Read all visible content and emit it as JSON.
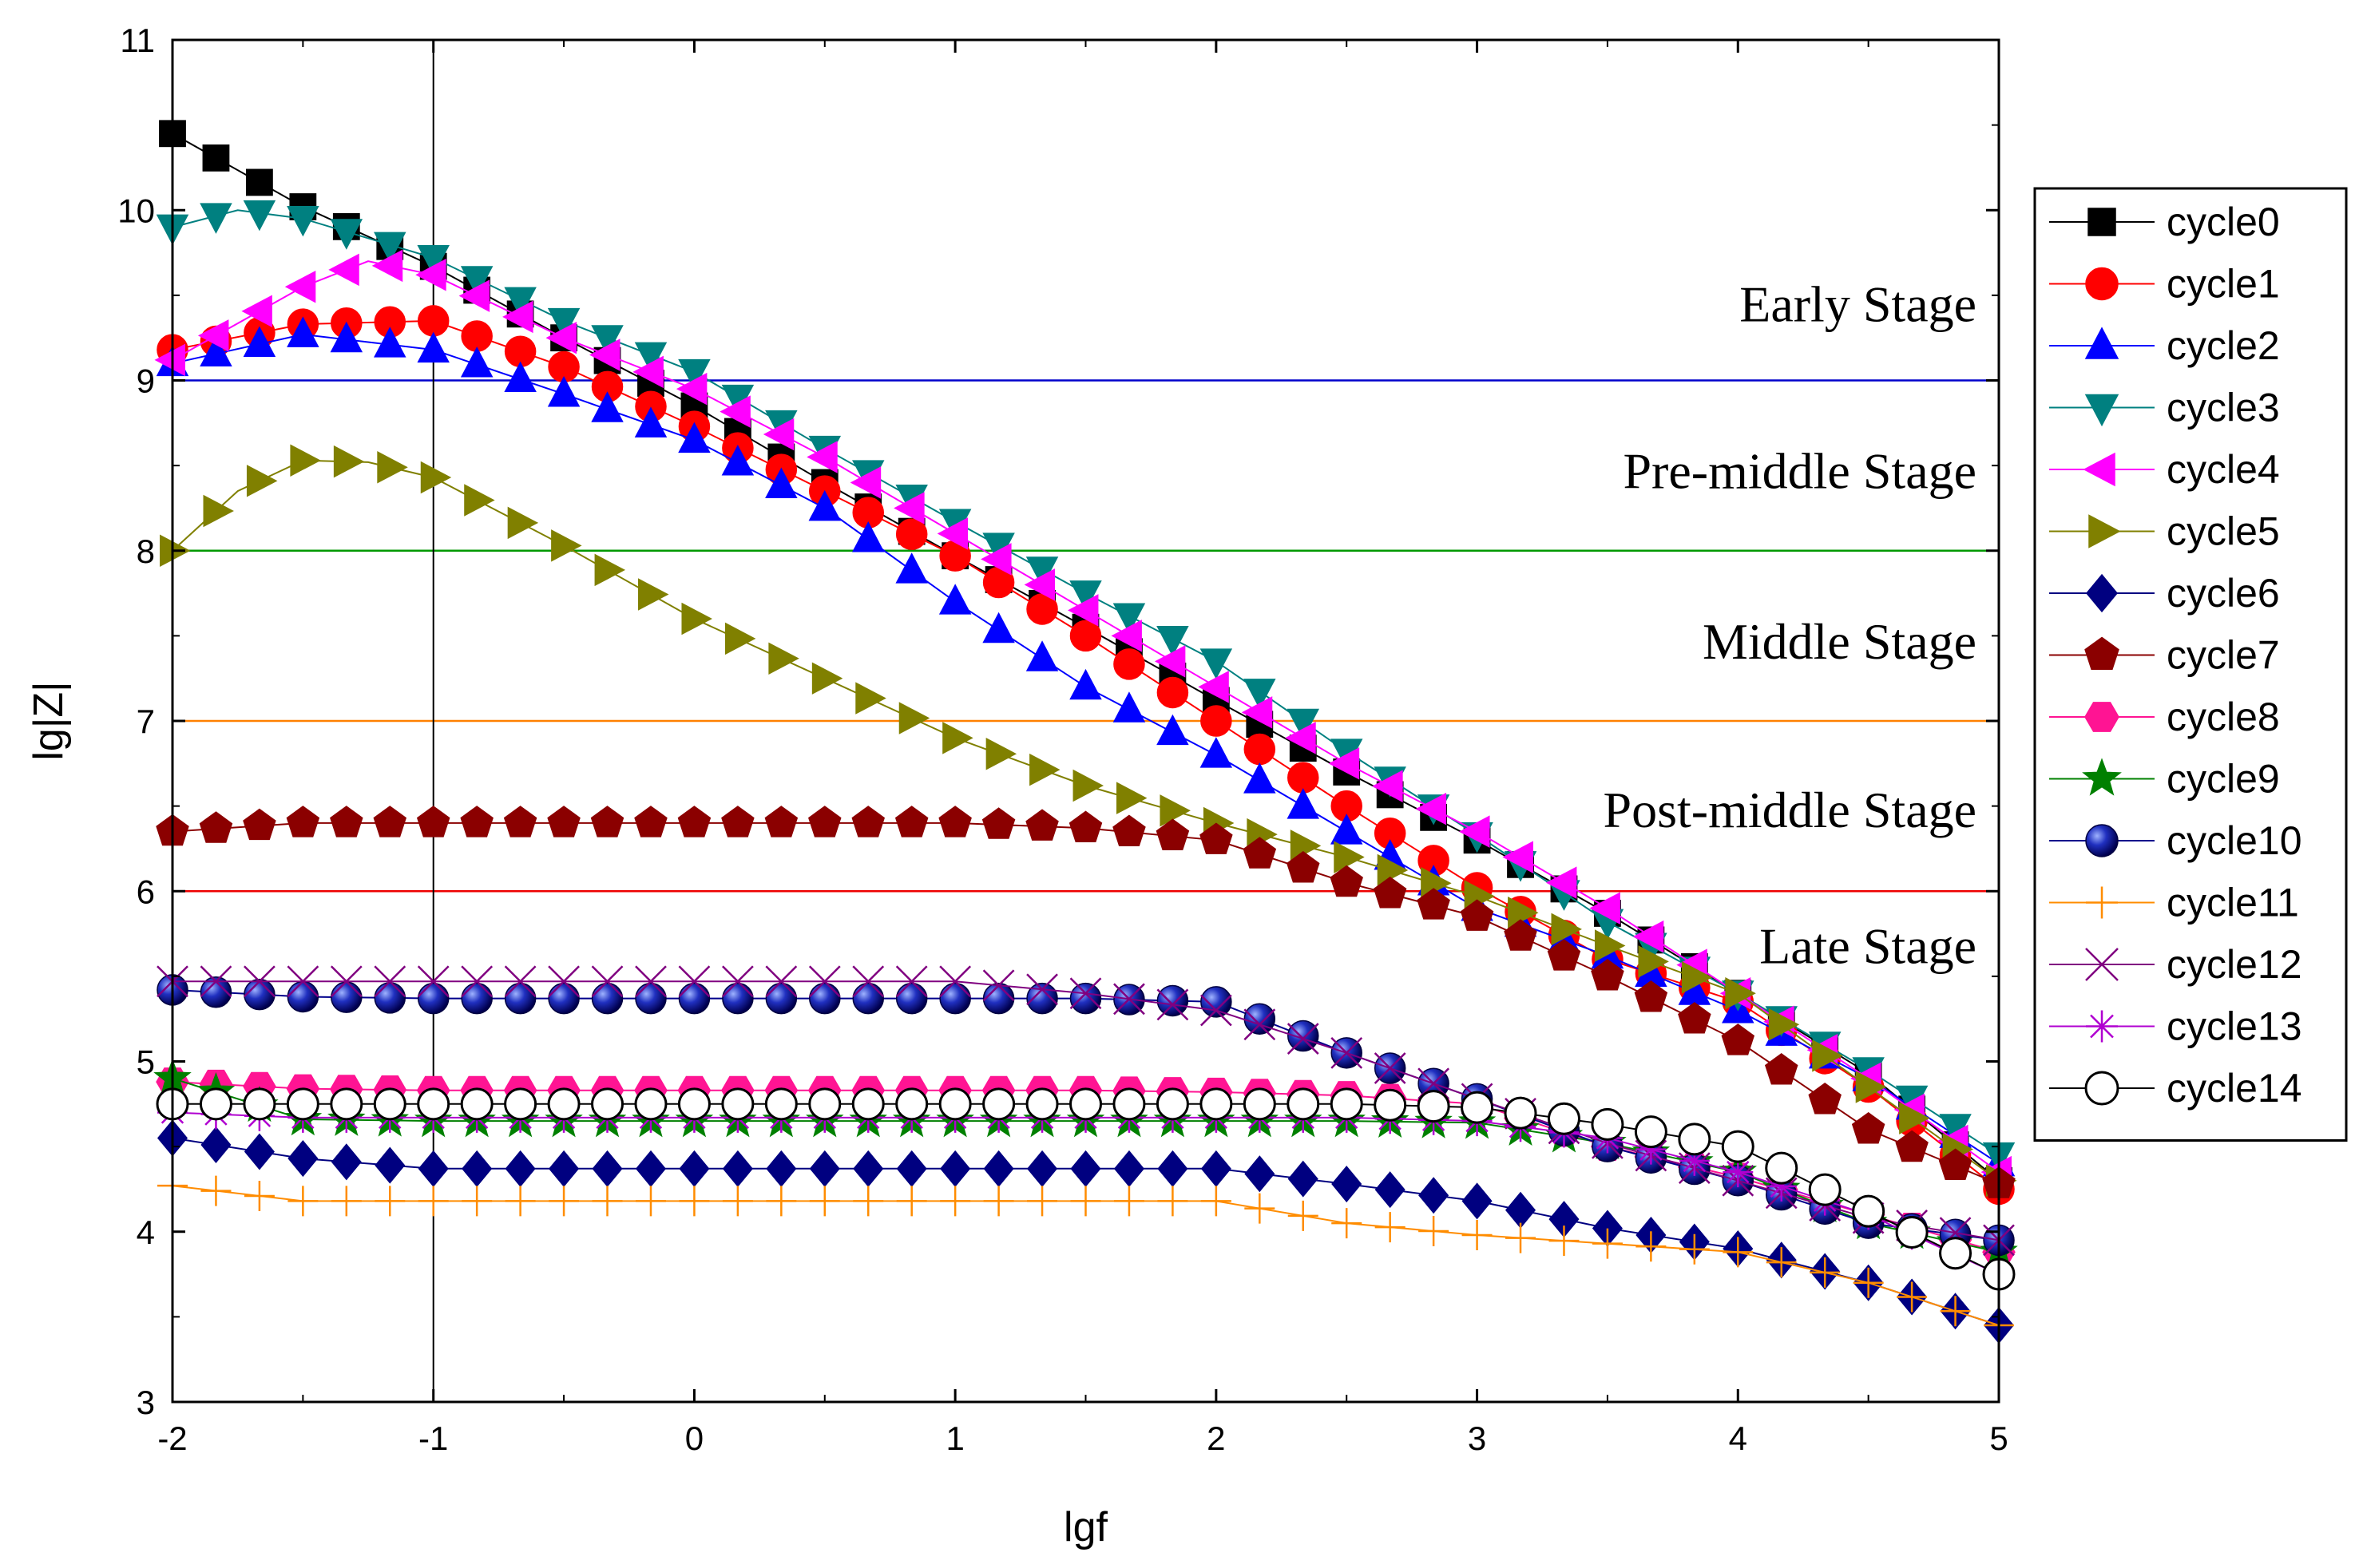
{
  "chart_data": {
    "type": "line",
    "title": "",
    "xlabel": "lgf",
    "ylabel": "lg|Z|",
    "xlim": [
      -2,
      5
    ],
    "ylim": [
      3,
      11
    ],
    "xticks": [
      -2,
      -1,
      0,
      1,
      2,
      3,
      4,
      5
    ],
    "yticks": [
      3,
      4,
      5,
      6,
      7,
      8,
      9,
      10,
      11
    ],
    "x_tick_labels": [
      "-2",
      "-1",
      "0",
      "1",
      "2",
      "3",
      "4",
      "5"
    ],
    "y_tick_labels": [
      "3",
      "4",
      "5",
      "6",
      "7",
      "8",
      "9",
      "10",
      "11"
    ],
    "legend_position": "right",
    "reference_vline": {
      "x": -1,
      "color": "#000000"
    },
    "threshold_lines": [
      {
        "y": 9,
        "color": "#0000cc"
      },
      {
        "y": 8,
        "color": "#009900"
      },
      {
        "y": 7,
        "color": "#ff8000"
      },
      {
        "y": 6,
        "color": "#ee0000"
      }
    ],
    "stage_labels": [
      {
        "text": "Early Stage",
        "y": 9.45
      },
      {
        "text": "Pre-middle Stage",
        "y": 8.47
      },
      {
        "text": "Middle Stage",
        "y": 7.47
      },
      {
        "text": "Post-middle Stage",
        "y": 6.48
      },
      {
        "text": "Late Stage",
        "y": 5.68
      }
    ],
    "series": [
      {
        "name": "cycle0",
        "color": "#000000",
        "line_color": "#000000",
        "marker": "square",
        "points": [
          [
            -2,
            10.45
          ],
          [
            -1.5,
            10.02
          ],
          [
            -1,
            9.67
          ],
          [
            -0.5,
            9.25
          ],
          [
            0,
            8.85
          ],
          [
            0.5,
            8.4
          ],
          [
            1,
            7.97
          ],
          [
            1.5,
            7.55
          ],
          [
            2,
            7.12
          ],
          [
            2.5,
            6.7
          ],
          [
            3,
            6.3
          ],
          [
            3.5,
            5.87
          ],
          [
            4,
            5.4
          ],
          [
            4.5,
            4.93
          ],
          [
            5,
            4.3
          ]
        ]
      },
      {
        "name": "cycle1",
        "color": "#ff0000",
        "line_color": "#ff0000",
        "marker": "circle",
        "points": [
          [
            -2,
            9.18
          ],
          [
            -1.5,
            9.33
          ],
          [
            -1,
            9.35
          ],
          [
            -0.5,
            9.08
          ],
          [
            0,
            8.73
          ],
          [
            0.5,
            8.35
          ],
          [
            1,
            7.97
          ],
          [
            1.5,
            7.5
          ],
          [
            2,
            7.0
          ],
          [
            2.5,
            6.5
          ],
          [
            3,
            6.02
          ],
          [
            3.5,
            5.6
          ],
          [
            4,
            5.35
          ],
          [
            4.5,
            4.85
          ],
          [
            5,
            4.25
          ]
        ]
      },
      {
        "name": "cycle2",
        "color": "#0000ff",
        "line_color": "#0000ff",
        "marker": "triangle-up",
        "points": [
          [
            -2,
            9.1
          ],
          [
            -1.5,
            9.27
          ],
          [
            -1,
            9.18
          ],
          [
            -0.5,
            8.92
          ],
          [
            0,
            8.65
          ],
          [
            0.5,
            8.25
          ],
          [
            1,
            7.7
          ],
          [
            1.5,
            7.2
          ],
          [
            2,
            6.8
          ],
          [
            2.5,
            6.35
          ],
          [
            3,
            5.9
          ],
          [
            3.5,
            5.62
          ],
          [
            4,
            5.3
          ],
          [
            4.5,
            4.9
          ],
          [
            5,
            4.4
          ]
        ]
      },
      {
        "name": "cycle3",
        "color": "#008080",
        "line_color": "#008080",
        "marker": "triangle-down",
        "points": [
          [
            -2,
            9.9
          ],
          [
            -1.75,
            10.0
          ],
          [
            -1.5,
            9.95
          ],
          [
            -1,
            9.72
          ],
          [
            -0.5,
            9.35
          ],
          [
            0,
            9.05
          ],
          [
            0.5,
            8.6
          ],
          [
            1,
            8.17
          ],
          [
            1.5,
            7.75
          ],
          [
            2,
            7.35
          ],
          [
            2.5,
            6.82
          ],
          [
            3,
            6.33
          ],
          [
            3.5,
            5.82
          ],
          [
            4,
            5.4
          ],
          [
            4.5,
            4.95
          ],
          [
            5,
            4.45
          ]
        ]
      },
      {
        "name": "cycle4",
        "color": "#ff00ff",
        "line_color": "#ff00ff",
        "marker": "triangle-left",
        "points": [
          [
            -2,
            9.12
          ],
          [
            -1.5,
            9.55
          ],
          [
            -1.25,
            9.7
          ],
          [
            -1,
            9.62
          ],
          [
            -0.5,
            9.25
          ],
          [
            0,
            8.95
          ],
          [
            0.5,
            8.55
          ],
          [
            1,
            8.1
          ],
          [
            1.5,
            7.65
          ],
          [
            2,
            7.2
          ],
          [
            2.5,
            6.75
          ],
          [
            3,
            6.35
          ],
          [
            3.5,
            5.9
          ],
          [
            4,
            5.4
          ],
          [
            4.5,
            4.9
          ],
          [
            5,
            4.35
          ]
        ]
      },
      {
        "name": "cycle5",
        "color": "#808000",
        "line_color": "#808000",
        "marker": "triangle-right",
        "points": [
          [
            -2,
            8.0
          ],
          [
            -1.75,
            8.35
          ],
          [
            -1.5,
            8.53
          ],
          [
            -1.25,
            8.52
          ],
          [
            -1,
            8.43
          ],
          [
            -0.5,
            8.03
          ],
          [
            0,
            7.6
          ],
          [
            0.5,
            7.25
          ],
          [
            1,
            6.9
          ],
          [
            1.5,
            6.62
          ],
          [
            2,
            6.4
          ],
          [
            2.5,
            6.2
          ],
          [
            3,
            5.97
          ],
          [
            3.5,
            5.68
          ],
          [
            4,
            5.4
          ],
          [
            4.5,
            4.85
          ],
          [
            5,
            4.3
          ]
        ]
      },
      {
        "name": "cycle6",
        "color": "#000080",
        "line_color": "#000080",
        "marker": "diamond",
        "points": [
          [
            -2,
            4.55
          ],
          [
            -1.5,
            4.43
          ],
          [
            -1,
            4.37
          ],
          [
            -0.5,
            4.37
          ],
          [
            0,
            4.37
          ],
          [
            0.5,
            4.37
          ],
          [
            1,
            4.37
          ],
          [
            1.5,
            4.37
          ],
          [
            2,
            4.37
          ],
          [
            2.5,
            4.28
          ],
          [
            3,
            4.18
          ],
          [
            3.5,
            4.02
          ],
          [
            4,
            3.9
          ],
          [
            4.5,
            3.7
          ],
          [
            5,
            3.45
          ]
        ]
      },
      {
        "name": "cycle7",
        "color": "#8b0000",
        "line_color": "#8b0000",
        "marker": "pentagon",
        "points": [
          [
            -2,
            6.35
          ],
          [
            -1.5,
            6.4
          ],
          [
            -1,
            6.4
          ],
          [
            -0.5,
            6.4
          ],
          [
            0,
            6.4
          ],
          [
            0.5,
            6.4
          ],
          [
            1,
            6.4
          ],
          [
            1.5,
            6.37
          ],
          [
            2,
            6.3
          ],
          [
            2.5,
            6.05
          ],
          [
            3,
            5.85
          ],
          [
            3.5,
            5.5
          ],
          [
            4,
            5.12
          ],
          [
            4.5,
            4.6
          ],
          [
            5,
            4.28
          ]
        ]
      },
      {
        "name": "cycle8",
        "color": "#ff1493",
        "line_color": "#ff1493",
        "marker": "hexagon",
        "points": [
          [
            -2,
            4.88
          ],
          [
            -1.5,
            4.84
          ],
          [
            -1,
            4.83
          ],
          [
            -0.5,
            4.83
          ],
          [
            0,
            4.83
          ],
          [
            0.5,
            4.83
          ],
          [
            1,
            4.83
          ],
          [
            1.5,
            4.83
          ],
          [
            2,
            4.82
          ],
          [
            2.5,
            4.8
          ],
          [
            3,
            4.75
          ],
          [
            3.5,
            4.5
          ],
          [
            4,
            4.32
          ],
          [
            4.5,
            4.1
          ],
          [
            5,
            3.88
          ]
        ]
      },
      {
        "name": "cycle9",
        "color": "#008000",
        "line_color": "#008000",
        "marker": "star",
        "points": [
          [
            -2,
            4.9
          ],
          [
            -1.5,
            4.66
          ],
          [
            -1,
            4.65
          ],
          [
            -0.5,
            4.65
          ],
          [
            0,
            4.65
          ],
          [
            0.5,
            4.65
          ],
          [
            1,
            4.65
          ],
          [
            1.5,
            4.65
          ],
          [
            2,
            4.65
          ],
          [
            2.5,
            4.65
          ],
          [
            3,
            4.64
          ],
          [
            3.5,
            4.52
          ],
          [
            4,
            4.35
          ],
          [
            4.5,
            4.05
          ],
          [
            5,
            3.88
          ]
        ]
      },
      {
        "name": "cycle10",
        "color": "#00008b",
        "line_color": "#00008b",
        "marker": "sphere",
        "points": [
          [
            -2,
            5.42
          ],
          [
            -1.5,
            5.38
          ],
          [
            -1,
            5.37
          ],
          [
            -0.5,
            5.37
          ],
          [
            0,
            5.37
          ],
          [
            0.5,
            5.37
          ],
          [
            1,
            5.37
          ],
          [
            1.5,
            5.37
          ],
          [
            2,
            5.35
          ],
          [
            2.5,
            5.05
          ],
          [
            3,
            4.78
          ],
          [
            3.5,
            4.5
          ],
          [
            4,
            4.3
          ],
          [
            4.5,
            4.05
          ],
          [
            5,
            3.95
          ]
        ]
      },
      {
        "name": "cycle11",
        "color": "#ff8c00",
        "line_color": "#ff8c00",
        "marker": "plus",
        "points": [
          [
            -2,
            4.27
          ],
          [
            -1.5,
            4.18
          ],
          [
            -1,
            4.18
          ],
          [
            -0.5,
            4.18
          ],
          [
            0,
            4.18
          ],
          [
            0.5,
            4.18
          ],
          [
            1,
            4.18
          ],
          [
            1.5,
            4.18
          ],
          [
            2,
            4.18
          ],
          [
            2.5,
            4.05
          ],
          [
            3,
            3.98
          ],
          [
            3.5,
            3.93
          ],
          [
            4,
            3.88
          ],
          [
            4.5,
            3.7
          ],
          [
            5,
            3.45
          ]
        ]
      },
      {
        "name": "cycle12",
        "color": "#800080",
        "line_color": "#800080",
        "marker": "x",
        "points": [
          [
            -2,
            5.47
          ],
          [
            -1.5,
            5.47
          ],
          [
            -1,
            5.47
          ],
          [
            -0.5,
            5.47
          ],
          [
            0,
            5.47
          ],
          [
            0.5,
            5.47
          ],
          [
            1,
            5.47
          ],
          [
            1.5,
            5.4
          ],
          [
            2,
            5.3
          ],
          [
            2.5,
            5.05
          ],
          [
            3,
            4.78
          ],
          [
            3.5,
            4.52
          ],
          [
            4,
            4.3
          ],
          [
            4.5,
            4.08
          ],
          [
            5,
            3.95
          ]
        ]
      },
      {
        "name": "cycle13",
        "color": "#b000d0",
        "line_color": "#b000d0",
        "marker": "asterisk",
        "points": [
          [
            -2,
            4.7
          ],
          [
            -1.5,
            4.67
          ],
          [
            -1,
            4.67
          ],
          [
            -0.5,
            4.67
          ],
          [
            0,
            4.67
          ],
          [
            0.5,
            4.67
          ],
          [
            1,
            4.67
          ],
          [
            1.5,
            4.67
          ],
          [
            2,
            4.67
          ],
          [
            2.5,
            4.67
          ],
          [
            3,
            4.65
          ],
          [
            3.5,
            4.55
          ],
          [
            4,
            4.35
          ],
          [
            4.5,
            4.1
          ],
          [
            5,
            3.75
          ]
        ]
      },
      {
        "name": "cycle14",
        "color": "#ffffff",
        "line_color": "#000000",
        "marker": "circle-open",
        "points": [
          [
            -2,
            4.75
          ],
          [
            -1.5,
            4.75
          ],
          [
            -1,
            4.75
          ],
          [
            -0.5,
            4.75
          ],
          [
            0,
            4.75
          ],
          [
            0.5,
            4.75
          ],
          [
            1,
            4.75
          ],
          [
            1.5,
            4.75
          ],
          [
            2,
            4.75
          ],
          [
            2.5,
            4.75
          ],
          [
            3,
            4.73
          ],
          [
            3.5,
            4.63
          ],
          [
            4,
            4.5
          ],
          [
            4.5,
            4.12
          ],
          [
            5,
            3.75
          ]
        ]
      }
    ]
  }
}
